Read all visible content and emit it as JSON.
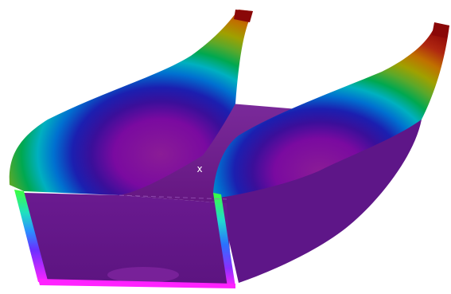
{
  "viewport": {
    "background": "#ffffff"
  },
  "model": {
    "contour_colors": [
      "#7d0a7f",
      "#4a0d8a",
      "#1b1fa8",
      "#0070d0",
      "#00c0c0",
      "#00b050",
      "#6bbf2a",
      "#c7b300",
      "#d46b00",
      "#b01010"
    ],
    "base_color": "#6a1e8c",
    "edge_color": "#ff22ff",
    "highlight_edge_color": "#3cff3c"
  },
  "origin_marker": {
    "glyph": "x"
  }
}
